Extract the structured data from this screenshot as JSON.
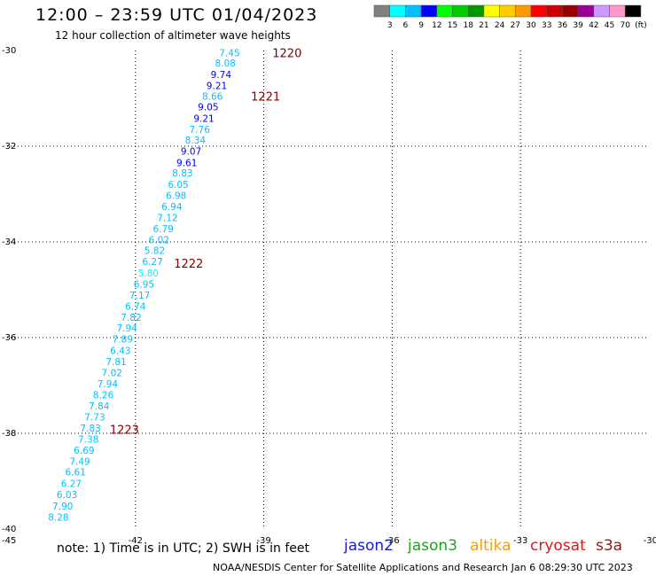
{
  "header": {
    "title": "12:00 – 23:59 UTC 01/04/2023",
    "subtitle": "12 hour collection of altimeter wave heights"
  },
  "footer": {
    "note": "note: 1) Time is in UTC; 2) SWH is in feet",
    "credit": "NOAA/NESDIS Center for Satellite Applications and Research   Jan  6 08:29:30 UTC 2023"
  },
  "satellites": [
    {
      "name": "jason2",
      "color": "#1a1ad6"
    },
    {
      "name": "jason3",
      "color": "#22a022"
    },
    {
      "name": "altika",
      "color": "#f39c12"
    },
    {
      "name": "cryosat",
      "color": "#d21a1a"
    },
    {
      "name": "s3a",
      "color": "#8b1a1a"
    }
  ],
  "chart_data": {
    "type": "scatter",
    "title": "12:00 – 23:59 UTC 01/04/2023",
    "xlim": [
      -45,
      -30
    ],
    "ylim": [
      -40,
      -30
    ],
    "x_ticks": [
      -45,
      -42,
      -39,
      -36,
      -33,
      -30
    ],
    "y_ticks": [
      -30,
      -32,
      -34,
      -36,
      -38,
      -40
    ],
    "x_tick_labels": [
      "-45",
      "-42",
      "-39",
      "-36",
      "-33",
      "-30"
    ],
    "y_tick_labels": [
      "-30",
      "-32",
      "-34",
      "-36",
      "-38",
      "-40"
    ],
    "grid": true,
    "colorbar": {
      "labels": [
        "3",
        "6",
        "9",
        "12",
        "15",
        "18",
        "21",
        "24",
        "27",
        "30",
        "33",
        "36",
        "39",
        "42",
        "45",
        "70",
        "(ft)"
      ],
      "colors": [
        "#808080",
        "#00ffff",
        "#00bfff",
        "#0000ff",
        "#00ff00",
        "#00cc00",
        "#009900",
        "#ffff00",
        "#ffcc00",
        "#ff9900",
        "#ff0000",
        "#cc0000",
        "#990000",
        "#990099",
        "#cc99ff",
        "#ff99cc",
        "#000000"
      ]
    },
    "points": [
      {
        "x": -39.8,
        "y": -30.05,
        "v": "7.45",
        "c": "#00bfff"
      },
      {
        "x": -39.9,
        "y": -30.26,
        "v": "8.08",
        "c": "#00bfff"
      },
      {
        "x": -40.0,
        "y": -30.5,
        "v": "9.74",
        "c": "#0000ff"
      },
      {
        "x": -40.1,
        "y": -30.73,
        "v": "9.21",
        "c": "#0000ff"
      },
      {
        "x": -40.2,
        "y": -30.95,
        "v": "8.66",
        "c": "#00bfff"
      },
      {
        "x": -40.3,
        "y": -31.18,
        "v": "9.05",
        "c": "#0000ff"
      },
      {
        "x": -40.4,
        "y": -31.42,
        "v": "9.21",
        "c": "#0000ff"
      },
      {
        "x": -40.5,
        "y": -31.65,
        "v": "7.76",
        "c": "#00bfff"
      },
      {
        "x": -40.6,
        "y": -31.87,
        "v": "8.34",
        "c": "#00bfff"
      },
      {
        "x": -40.7,
        "y": -32.1,
        "v": "9.07",
        "c": "#0000ff"
      },
      {
        "x": -40.8,
        "y": -32.34,
        "v": "9.61",
        "c": "#0000ff"
      },
      {
        "x": -40.9,
        "y": -32.56,
        "v": "8.83",
        "c": "#00bfff"
      },
      {
        "x": -41.0,
        "y": -32.8,
        "v": "6.05",
        "c": "#00bfff"
      },
      {
        "x": -41.05,
        "y": -33.03,
        "v": "6.98",
        "c": "#00bfff"
      },
      {
        "x": -41.15,
        "y": -33.26,
        "v": "6.94",
        "c": "#00bfff"
      },
      {
        "x": -41.25,
        "y": -33.49,
        "v": "7.12",
        "c": "#00bfff"
      },
      {
        "x": -41.35,
        "y": -33.72,
        "v": "6.79",
        "c": "#00bfff"
      },
      {
        "x": -41.45,
        "y": -33.95,
        "v": "6.02",
        "c": "#00bfff"
      },
      {
        "x": -41.55,
        "y": -34.18,
        "v": "5.82",
        "c": "#00bfff"
      },
      {
        "x": -41.6,
        "y": -34.41,
        "v": "6.27",
        "c": "#00bfff"
      },
      {
        "x": -41.7,
        "y": -34.65,
        "v": "5.80",
        "c": "#00ffff"
      },
      {
        "x": -41.8,
        "y": -34.88,
        "v": "6.95",
        "c": "#00bfff"
      },
      {
        "x": -41.9,
        "y": -35.11,
        "v": "7.17",
        "c": "#00bfff"
      },
      {
        "x": -42.0,
        "y": -35.34,
        "v": "6.74",
        "c": "#00bfff"
      },
      {
        "x": -42.1,
        "y": -35.57,
        "v": "7.82",
        "c": "#00bfff"
      },
      {
        "x": -42.2,
        "y": -35.8,
        "v": "7.94",
        "c": "#00bfff"
      },
      {
        "x": -42.3,
        "y": -36.03,
        "v": "7.89",
        "c": "#00bfff"
      },
      {
        "x": -42.35,
        "y": -36.27,
        "v": "6.43",
        "c": "#00bfff"
      },
      {
        "x": -42.45,
        "y": -36.5,
        "v": "7.81",
        "c": "#00bfff"
      },
      {
        "x": -42.55,
        "y": -36.73,
        "v": "7.02",
        "c": "#00bfff"
      },
      {
        "x": -42.65,
        "y": -36.96,
        "v": "7.94",
        "c": "#00bfff"
      },
      {
        "x": -42.75,
        "y": -37.19,
        "v": "8.26",
        "c": "#00bfff"
      },
      {
        "x": -42.85,
        "y": -37.43,
        "v": "7.84",
        "c": "#00bfff"
      },
      {
        "x": -42.95,
        "y": -37.66,
        "v": "7.73",
        "c": "#00bfff"
      },
      {
        "x": -43.05,
        "y": -37.89,
        "v": "7.83",
        "c": "#00bfff"
      },
      {
        "x": -43.1,
        "y": -38.12,
        "v": "7.38",
        "c": "#00bfff"
      },
      {
        "x": -43.2,
        "y": -38.35,
        "v": "6.69",
        "c": "#00bfff"
      },
      {
        "x": -43.3,
        "y": -38.58,
        "v": "7.49",
        "c": "#00bfff"
      },
      {
        "x": -43.4,
        "y": -38.81,
        "v": "6.61",
        "c": "#00bfff"
      },
      {
        "x": -43.5,
        "y": -39.05,
        "v": "6.27",
        "c": "#00bfff"
      },
      {
        "x": -43.6,
        "y": -39.28,
        "v": "6.03",
        "c": "#00bfff"
      },
      {
        "x": -43.7,
        "y": -39.52,
        "v": "7.90",
        "c": "#00bfff"
      },
      {
        "x": -43.8,
        "y": -39.75,
        "v": "8.28",
        "c": "#00bfff"
      }
    ],
    "time_labels": [
      {
        "x": -38.8,
        "y": -30.05,
        "t": "1220",
        "c": "#800000"
      },
      {
        "x": -39.3,
        "y": -30.95,
        "t": "1221",
        "c": "#800000"
      },
      {
        "x": -41.1,
        "y": -34.44,
        "t": "1222",
        "c": "#800000"
      },
      {
        "x": -42.6,
        "y": -37.92,
        "t": "1223",
        "c": "#800000"
      }
    ]
  }
}
